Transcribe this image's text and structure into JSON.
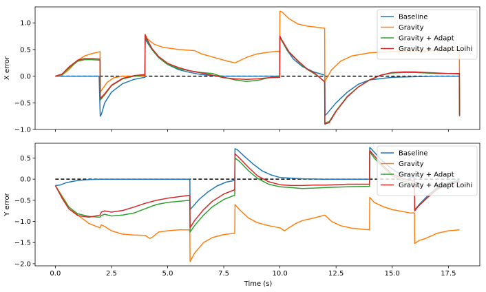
{
  "figure": {
    "xlabel": "Time (s)"
  },
  "chart_data": [
    {
      "type": "line",
      "ylabel": "X error",
      "xlim": [
        -0.9,
        18.9
      ],
      "ylim": [
        -1.0,
        1.3
      ],
      "xticks": [
        0,
        2.5,
        5,
        7.5,
        10,
        12.5,
        15,
        17.5
      ],
      "show_xtick_labels": false,
      "yticks": [
        -1.0,
        -0.5,
        0.0,
        0.5,
        1.0
      ],
      "ytick_labels": [
        "−1.0",
        "−0.5",
        "0.0",
        "0.5",
        "1.0"
      ],
      "grid": false,
      "legend": "top-right",
      "reference": {
        "y": 0,
        "style": "dashed",
        "color": "#000000"
      },
      "series": [
        {
          "name": "Baseline",
          "color": "#1f77b4",
          "x": [
            0,
            1.95,
            2.0,
            2.05,
            2.2,
            2.5,
            3,
            3.5,
            3.99,
            4.0,
            4.05,
            4.3,
            4.6,
            5,
            5.5,
            6,
            6.5,
            7,
            7.5,
            8,
            9,
            9.99,
            10.0,
            10.05,
            10.3,
            10.6,
            11,
            11.5,
            12,
            12.01,
            12.1,
            12.5,
            13,
            13.5,
            14,
            15,
            16,
            17,
            17.99,
            18.0
          ],
          "y": [
            0,
            0,
            -0.75,
            -0.72,
            -0.5,
            -0.3,
            -0.14,
            -0.06,
            -0.02,
            0.72,
            0.66,
            0.5,
            0.35,
            0.22,
            0.12,
            0.07,
            0.03,
            0.01,
            0,
            0,
            0,
            0,
            0.75,
            0.7,
            0.5,
            0.32,
            0.18,
            0.08,
            0.02,
            -0.74,
            -0.7,
            -0.5,
            -0.3,
            -0.15,
            -0.07,
            -0.02,
            -0.01,
            0,
            0,
            -0.75
          ]
        },
        {
          "name": "Gravity",
          "color": "#ff7f0e",
          "x": [
            0,
            0.3,
            0.6,
            1.0,
            1.3,
            1.6,
            1.99,
            2.0,
            2.3,
            2.6,
            3,
            3.5,
            3.99,
            4.0,
            4.1,
            4.4,
            4.8,
            5.5,
            6.2,
            6.5,
            7,
            7.5,
            8,
            8.5,
            9,
            9.5,
            9.99,
            10.0,
            10.1,
            10.4,
            10.8,
            11.2,
            11.6,
            11.99,
            12.0,
            12.3,
            12.7,
            13.2,
            14,
            15,
            16,
            17,
            17.99,
            18.0
          ],
          "y": [
            0,
            0.02,
            0.12,
            0.3,
            0.38,
            0.42,
            0.46,
            -0.3,
            -0.12,
            -0.03,
            0,
            0,
            0,
            0.78,
            0.7,
            0.6,
            0.54,
            0.5,
            0.48,
            0.42,
            0.36,
            0.3,
            0.25,
            0.35,
            0.42,
            0.45,
            0.47,
            1.22,
            1.2,
            1.08,
            0.98,
            0.94,
            0.92,
            0.9,
            -0.1,
            0.12,
            0.28,
            0.38,
            0.44,
            0.46,
            0.47,
            0.48,
            0.49,
            -0.72
          ]
        },
        {
          "name": "Gravity + Adapt",
          "color": "#2ca02c",
          "x": [
            0,
            0.3,
            0.6,
            1.0,
            1.3,
            1.6,
            1.99,
            2.0,
            2.2,
            2.5,
            3,
            3.5,
            3.99,
            4.0,
            4.05,
            4.3,
            4.6,
            5,
            5.5,
            6,
            6.5,
            7,
            7.5,
            8,
            8.5,
            9,
            9.5,
            9.99,
            10.0,
            10.1,
            10.4,
            10.8,
            11.2,
            11.6,
            11.99,
            12.0,
            12.2,
            12.5,
            13,
            13.5,
            14,
            14.5,
            15,
            15.5,
            16,
            16.5,
            17,
            17.5,
            17.99,
            18.0
          ],
          "y": [
            0,
            0.03,
            0.15,
            0.28,
            0.31,
            0.31,
            0.3,
            -0.45,
            -0.35,
            -0.18,
            -0.05,
            0,
            0.02,
            0.76,
            0.7,
            0.5,
            0.35,
            0.22,
            0.14,
            0.1,
            0.07,
            0.05,
            -0.02,
            -0.07,
            -0.1,
            -0.08,
            -0.03,
            0,
            0.73,
            0.65,
            0.45,
            0.28,
            0.13,
            0.03,
            -0.1,
            -0.88,
            -0.85,
            -0.65,
            -0.38,
            -0.2,
            -0.07,
            0.02,
            0.06,
            0.07,
            0.07,
            0.06,
            0.05,
            0.05,
            0.04,
            -0.74
          ]
        },
        {
          "name": "Gravity + Adapt Loihi",
          "color": "#d62728",
          "x": [
            0,
            0.3,
            0.6,
            1.0,
            1.3,
            1.6,
            1.99,
            2.0,
            2.2,
            2.5,
            3,
            3.5,
            3.99,
            4.0,
            4.05,
            4.3,
            4.6,
            5,
            5.5,
            6,
            6.5,
            7,
            7.5,
            8,
            8.5,
            9,
            9.5,
            9.99,
            10.0,
            10.1,
            10.4,
            10.8,
            11.2,
            11.6,
            11.99,
            12.0,
            12.2,
            12.5,
            13,
            13.5,
            14,
            14.5,
            15,
            15.5,
            16,
            16.5,
            17,
            17.5,
            17.99,
            18.0
          ],
          "y": [
            0,
            0.04,
            0.17,
            0.3,
            0.33,
            0.33,
            0.32,
            -0.42,
            -0.33,
            -0.17,
            -0.04,
            0.01,
            0.03,
            0.78,
            0.72,
            0.52,
            0.37,
            0.24,
            0.16,
            0.1,
            0.06,
            0.02,
            -0.03,
            -0.05,
            -0.06,
            -0.05,
            -0.03,
            -0.02,
            0.75,
            0.67,
            0.46,
            0.29,
            0.14,
            0.04,
            -0.11,
            -0.9,
            -0.87,
            -0.66,
            -0.39,
            -0.2,
            -0.07,
            0.02,
            0.07,
            0.08,
            0.08,
            0.07,
            0.06,
            0.05,
            0.05,
            -0.73
          ]
        }
      ]
    },
    {
      "type": "line",
      "ylabel": "Y error",
      "xlim": [
        -0.9,
        18.9
      ],
      "ylim": [
        -2.05,
        0.85
      ],
      "xticks": [
        0,
        2.5,
        5,
        7.5,
        10,
        12.5,
        15,
        17.5
      ],
      "xtick_labels": [
        "0.0",
        "2.5",
        "5.0",
        "7.5",
        "10.0",
        "12.5",
        "15.0",
        "17.5"
      ],
      "show_xtick_labels": true,
      "yticks": [
        -2.0,
        -1.5,
        -1.0,
        -0.5,
        0.0,
        0.5
      ],
      "ytick_labels": [
        "−2.0",
        "−1.5",
        "−1.0",
        "−0.5",
        "0.0",
        "0.5"
      ],
      "grid": false,
      "legend": "top-right",
      "reference": {
        "y": 0,
        "style": "dashed",
        "color": "#000000"
      },
      "series": [
        {
          "name": "Baseline",
          "color": "#1f77b4",
          "x": [
            0,
            0.2,
            0.5,
            1.0,
            1.5,
            2,
            3,
            4,
            5,
            5.99,
            6.0,
            6.1,
            6.4,
            6.8,
            7.2,
            7.6,
            7.99,
            8.0,
            8.1,
            8.4,
            8.8,
            9.2,
            9.6,
            10,
            11,
            12,
            13,
            13.99,
            14.0,
            14.1,
            14.4,
            14.8,
            15.2,
            15.6,
            15.99,
            16.0,
            16.2,
            16.6,
            17,
            17.5,
            18
          ],
          "y": [
            -0.15,
            -0.14,
            -0.08,
            -0.03,
            -0.01,
            0,
            0,
            0,
            0,
            0,
            -0.72,
            -0.66,
            -0.48,
            -0.3,
            -0.16,
            -0.07,
            -0.03,
            0.72,
            0.7,
            0.55,
            0.36,
            0.2,
            0.1,
            0.04,
            0.01,
            0,
            0,
            0,
            0.75,
            0.7,
            0.52,
            0.32,
            0.17,
            0.08,
            0.03,
            -0.73,
            -0.6,
            -0.38,
            -0.2,
            -0.08,
            -0.03
          ]
        },
        {
          "name": "Gravity",
          "color": "#ff7f0e",
          "x": [
            0,
            0.3,
            0.6,
            1.0,
            1.5,
            1.99,
            2.05,
            2.2,
            2.5,
            3,
            3.5,
            4,
            4.2,
            4.3,
            4.6,
            5,
            5.5,
            5.99,
            6.0,
            6.2,
            6.6,
            7,
            7.5,
            7.99,
            8.0,
            8.2,
            8.6,
            9,
            9.5,
            10,
            10.2,
            10.4,
            10.7,
            11,
            11.5,
            12,
            12.3,
            12.7,
            13.2,
            13.99,
            14.0,
            14.2,
            14.6,
            15,
            15.5,
            15.8,
            15.99,
            16.0,
            16.2,
            16.5,
            17,
            17.5,
            18
          ],
          "y": [
            -0.15,
            -0.4,
            -0.65,
            -0.85,
            -1.05,
            -1.15,
            -1.08,
            -1.12,
            -1.22,
            -1.3,
            -1.32,
            -1.33,
            -1.4,
            -1.38,
            -1.25,
            -1.22,
            -1.2,
            -1.2,
            -1.95,
            -1.75,
            -1.5,
            -1.38,
            -1.31,
            -1.28,
            -0.6,
            -0.72,
            -0.92,
            -1.03,
            -1.1,
            -1.15,
            -1.22,
            -1.15,
            -1.05,
            -0.98,
            -0.92,
            -0.85,
            -1.0,
            -1.1,
            -1.16,
            -1.2,
            -0.43,
            -0.55,
            -0.65,
            -0.72,
            -0.77,
            -0.8,
            -0.8,
            -1.52,
            -1.45,
            -1.4,
            -1.28,
            -1.22,
            -1.2
          ]
        },
        {
          "name": "Gravity + Adapt",
          "color": "#2ca02c",
          "x": [
            0,
            0.3,
            0.6,
            1.0,
            1.5,
            1.99,
            2.05,
            2.2,
            2.5,
            3,
            3.5,
            4,
            4.5,
            5,
            5.99,
            6.0,
            6.2,
            6.6,
            7,
            7.5,
            7.99,
            8.0,
            8.2,
            8.6,
            9,
            9.5,
            10,
            10.5,
            11,
            11.5,
            12,
            12.5,
            13,
            13.99,
            14.0,
            14.2,
            14.6,
            15,
            15.5,
            15.99,
            16.0,
            16.2,
            16.6,
            17,
            17.5,
            18
          ],
          "y": [
            -0.15,
            -0.42,
            -0.66,
            -0.82,
            -0.88,
            -0.9,
            -0.86,
            -0.83,
            -0.87,
            -0.85,
            -0.8,
            -0.7,
            -0.6,
            -0.55,
            -0.5,
            -1.25,
            -1.1,
            -0.85,
            -0.65,
            -0.48,
            -0.38,
            0.5,
            0.42,
            0.2,
            0.02,
            -0.12,
            -0.18,
            -0.2,
            -0.22,
            -0.21,
            -0.2,
            -0.19,
            -0.18,
            -0.17,
            0.65,
            0.5,
            0.28,
            0.08,
            -0.05,
            -0.1,
            -0.72,
            -0.62,
            -0.42,
            -0.22,
            -0.1,
            -0.05
          ]
        },
        {
          "name": "Gravity + Adapt Loihi",
          "color": "#d62728",
          "x": [
            0,
            0.3,
            0.6,
            1.0,
            1.5,
            1.99,
            2.05,
            2.2,
            2.5,
            3,
            3.5,
            4,
            4.5,
            5,
            5.99,
            6.0,
            6.2,
            6.6,
            7,
            7.5,
            7.99,
            8.0,
            8.2,
            8.6,
            9,
            9.5,
            10,
            10.5,
            11,
            11.5,
            12,
            12.5,
            13,
            13.99,
            14.0,
            14.2,
            14.6,
            15,
            15.5,
            15.99,
            16.0,
            16.2,
            16.6,
            17,
            17.5,
            18
          ],
          "y": [
            -0.15,
            -0.45,
            -0.7,
            -0.86,
            -0.9,
            -0.85,
            -0.78,
            -0.75,
            -0.78,
            -0.74,
            -0.66,
            -0.57,
            -0.5,
            -0.45,
            -0.38,
            -1.15,
            -0.98,
            -0.72,
            -0.52,
            -0.35,
            -0.25,
            0.6,
            0.5,
            0.28,
            0.08,
            -0.06,
            -0.13,
            -0.15,
            -0.15,
            -0.14,
            -0.14,
            -0.13,
            -0.12,
            -0.12,
            0.68,
            0.55,
            0.32,
            0.12,
            0,
            -0.05,
            -0.75,
            -0.62,
            -0.42,
            -0.24,
            -0.12,
            -0.06
          ]
        }
      ]
    }
  ]
}
